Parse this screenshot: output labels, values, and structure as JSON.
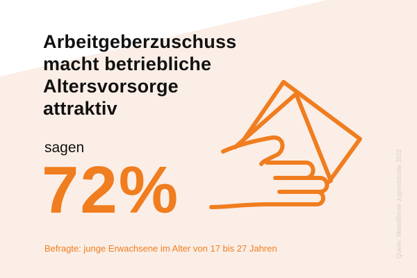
{
  "headline": {
    "lines": [
      "Arbeitgeberzuschuss",
      "macht betriebliche",
      "Altersvorsorge",
      "attraktiv"
    ]
  },
  "stat": {
    "prefix": "sagen",
    "value": "72%"
  },
  "footnote": "Befragte: junge Erwachsene im Alter von 17 bis 27 Jahren",
  "source": "Quelle: MetallRente Jugendstudie 2022",
  "icon": "hand-holding-money-icon",
  "colors": {
    "accent": "#f07d1f",
    "background": "#ffffff",
    "background_shape": "#fbeee6",
    "text": "#111111",
    "source_text": "#d8d0cc"
  }
}
